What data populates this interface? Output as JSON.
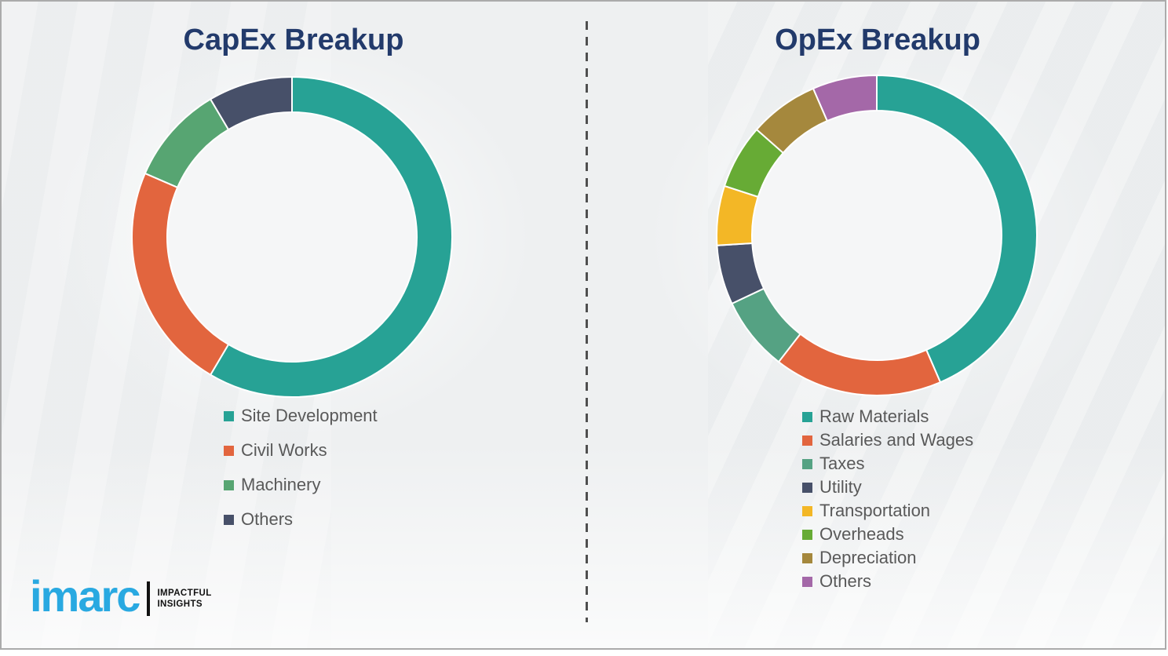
{
  "colors": {
    "background": "#EEF0F1",
    "frame_border": "#ABABAB",
    "title_text": "#223A6B",
    "legend_text": "#595959",
    "divider": "#4F4F4F",
    "brand_blue": "#29A9E1",
    "donut_hole": "#F5F6F7",
    "segment_gap": "#FFFFFF"
  },
  "chart_data": [
    {
      "type": "pie",
      "variant": "donut",
      "title": "CapEx Breakup",
      "categories": [
        "Site Development",
        "Civil Works",
        "Machinery",
        "Others"
      ],
      "values": [
        58.5,
        23,
        10,
        8.5
      ],
      "colors": [
        "#27A295",
        "#E2653E",
        "#57A572",
        "#475069"
      ],
      "values_note": "percent shares estimated from arc angles; no numeric labels shown",
      "start_angle_deg": 0,
      "direction": "clockwise",
      "legend_position": "below-left",
      "grid": false
    },
    {
      "type": "pie",
      "variant": "donut",
      "title": "OpEx Breakup",
      "categories": [
        "Raw Materials",
        "Salaries and Wages",
        "Taxes",
        "Utility",
        "Transportation",
        "Overheads",
        "Depreciation",
        "Others"
      ],
      "values": [
        43.5,
        17,
        7.5,
        6,
        6,
        6.5,
        7,
        6.5
      ],
      "colors": [
        "#27A295",
        "#E2653E",
        "#55A283",
        "#475069",
        "#F3B726",
        "#67AB35",
        "#A5883D",
        "#A468A8"
      ],
      "values_note": "percent shares estimated from arc angles; no numeric labels shown",
      "start_angle_deg": 0,
      "direction": "clockwise",
      "legend_position": "below-left",
      "grid": false
    }
  ],
  "logo": {
    "wordmark": "imarc",
    "tagline_line1": "IMPACTFUL",
    "tagline_line2": "INSIGHTS"
  }
}
